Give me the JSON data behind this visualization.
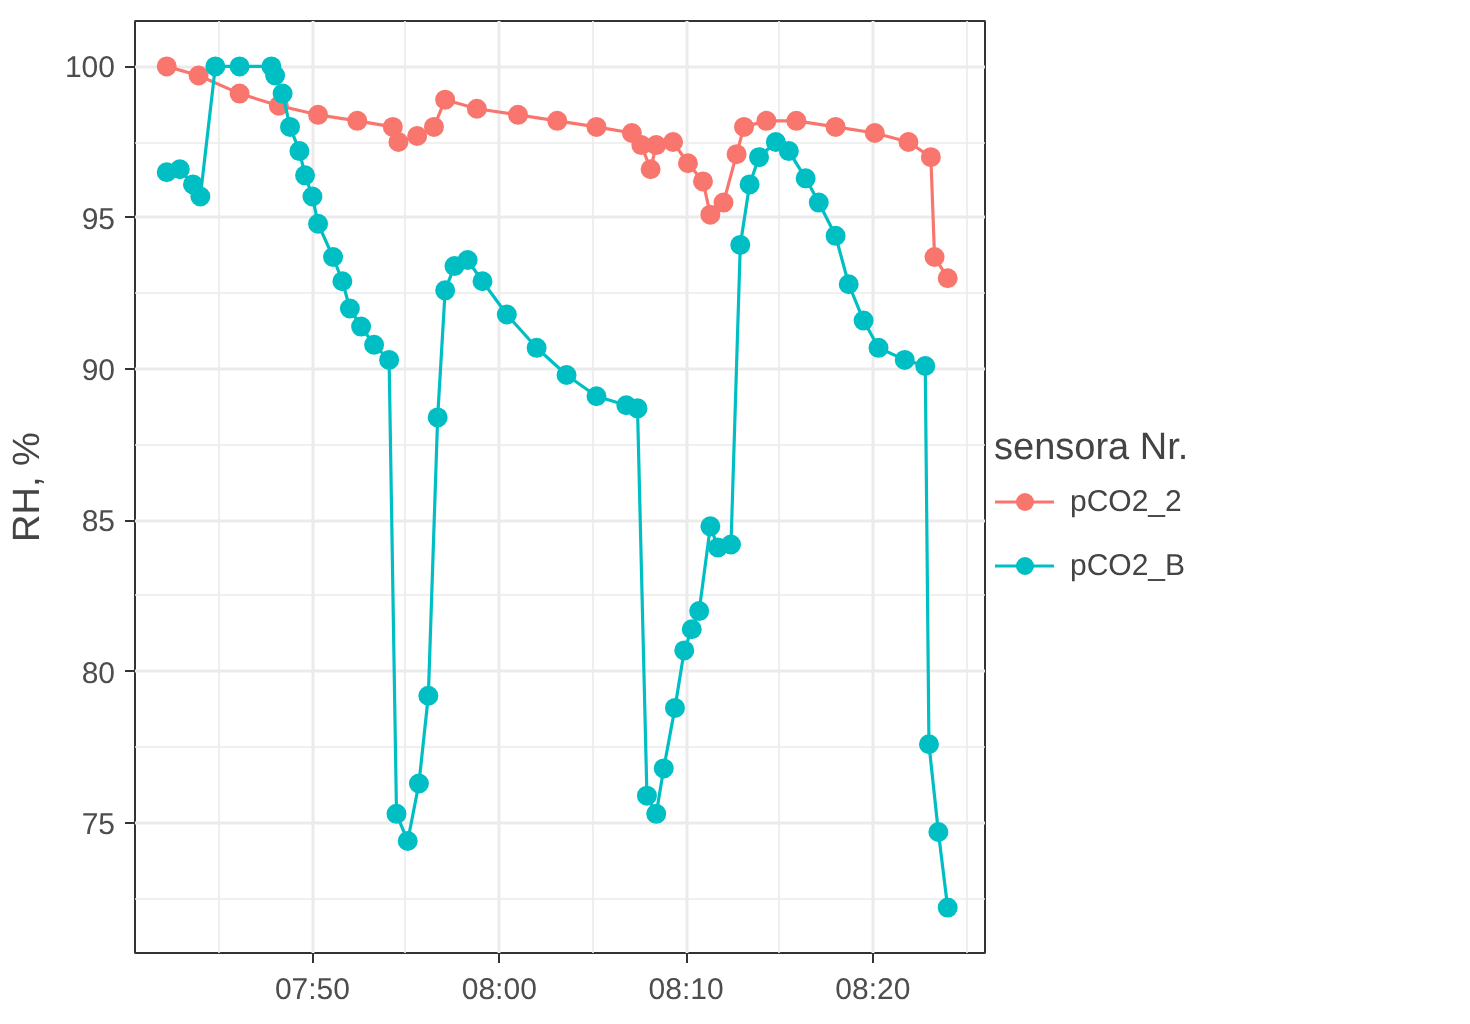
{
  "chart_data": {
    "type": "line",
    "ylabel": "RH, %",
    "legend_title": "sensora Nr.",
    "legend": "right",
    "grid": true,
    "marker": "circle",
    "line_style": "solid",
    "xlim": [
      7.675,
      8.4333
    ],
    "ylim": [
      70.7,
      101.5
    ],
    "xticks": [
      {
        "value": 7.8333,
        "label": "07:50"
      },
      {
        "value": 8.0,
        "label": "08:00"
      },
      {
        "value": 8.1667,
        "label": "08:10"
      },
      {
        "value": 8.3333,
        "label": "08:20"
      }
    ],
    "yticks": [
      75,
      80,
      85,
      90,
      95,
      100
    ],
    "series": [
      {
        "name": "pCO2_2",
        "color": "#f8766d",
        "x": [
          7.7033,
          7.7317,
          7.7683,
          7.8033,
          7.8383,
          7.8733,
          7.905,
          7.91,
          7.9267,
          7.9417,
          7.9517,
          7.98,
          8.0167,
          8.0517,
          8.0867,
          8.1183,
          8.1267,
          8.135,
          8.14,
          8.155,
          8.1683,
          8.1817,
          8.1883,
          8.2,
          8.2117,
          8.2183,
          8.2383,
          8.265,
          8.3,
          8.335,
          8.365,
          8.385,
          8.3883,
          8.4
        ],
        "values": [
          100.0,
          99.7,
          99.1,
          98.7,
          98.4,
          98.2,
          98.0,
          97.5,
          97.7,
          98.0,
          98.9,
          98.6,
          98.4,
          98.2,
          98.0,
          97.8,
          97.4,
          96.6,
          97.4,
          97.5,
          96.8,
          96.2,
          95.1,
          95.5,
          97.1,
          98.0,
          98.2,
          98.2,
          98.0,
          97.8,
          97.5,
          97.0,
          93.7,
          93.0
        ]
      },
      {
        "name": "pCO2_B",
        "color": "#00bfc4",
        "x": [
          7.7033,
          7.715,
          7.7267,
          7.7333,
          7.7467,
          7.7683,
          7.7967,
          7.8,
          7.8067,
          7.8133,
          7.8217,
          7.8267,
          7.8333,
          7.8383,
          7.8517,
          7.86,
          7.8667,
          7.8767,
          7.8883,
          7.9017,
          7.9083,
          7.9183,
          7.9283,
          7.9367,
          7.945,
          7.9517,
          7.96,
          7.9717,
          7.985,
          8.0067,
          8.0333,
          8.06,
          8.0867,
          8.1133,
          8.1233,
          8.1317,
          8.14,
          8.1467,
          8.1567,
          8.165,
          8.1717,
          8.1783,
          8.1883,
          8.195,
          8.2067,
          8.215,
          8.2233,
          8.2317,
          8.2467,
          8.2583,
          8.2733,
          8.285,
          8.3,
          8.3117,
          8.325,
          8.3383,
          8.3617,
          8.38,
          8.3833,
          8.3917,
          8.4
        ],
        "values": [
          96.5,
          96.6,
          96.1,
          95.7,
          100.0,
          100.0,
          100.0,
          99.7,
          99.1,
          98.0,
          97.2,
          96.4,
          95.7,
          94.8,
          93.7,
          92.9,
          92.0,
          91.4,
          90.8,
          90.3,
          75.3,
          74.4,
          76.3,
          79.2,
          88.4,
          92.6,
          93.4,
          93.6,
          92.9,
          91.8,
          90.7,
          89.8,
          89.1,
          88.8,
          88.7,
          75.9,
          75.3,
          76.8,
          78.8,
          80.7,
          81.4,
          82.0,
          84.8,
          84.1,
          84.2,
          94.1,
          96.1,
          97.0,
          97.5,
          97.2,
          96.3,
          95.5,
          94.4,
          92.8,
          91.6,
          90.7,
          90.3,
          90.1,
          77.6,
          74.7,
          72.2
        ]
      }
    ]
  }
}
